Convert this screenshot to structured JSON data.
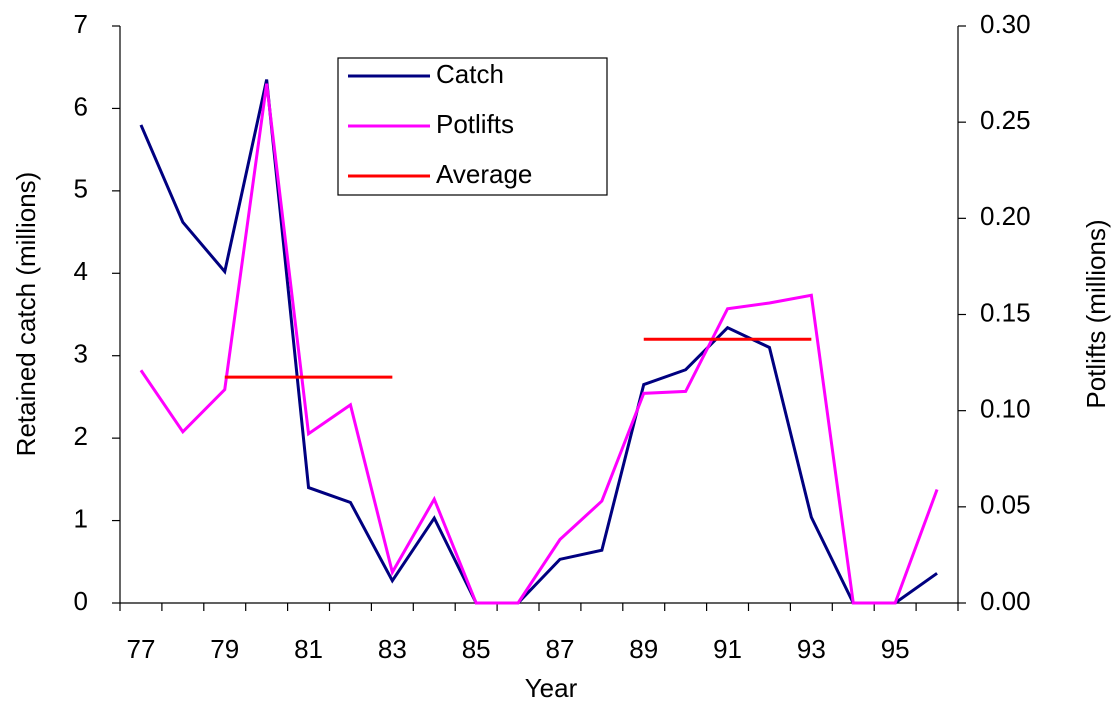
{
  "chart_data": {
    "type": "line",
    "xlabel": "Year",
    "ylabel": "Retained catch (millions)",
    "y2label": "Potlifts (millions)",
    "categories": [
      "77",
      null,
      "79",
      null,
      "81",
      null,
      "83",
      null,
      "85",
      null,
      "87",
      null,
      "89",
      null,
      "91",
      null,
      "93",
      null,
      "95",
      null
    ],
    "series": [
      {
        "name": "Catch",
        "color": "#000080",
        "values": [
          5.8,
          4.62,
          4.02,
          6.35,
          1.4,
          1.22,
          0.27,
          1.03,
          0,
          0,
          0.53,
          0.64,
          2.65,
          2.83,
          3.34,
          3.1,
          1.04,
          0,
          0,
          0.36
        ]
      },
      {
        "name": "Potlifts",
        "color": "#ff00ff",
        "axis": "y2",
        "values": [
          0.121,
          0.089,
          0.111,
          0.27,
          0.088,
          0.103,
          0.016,
          0.054,
          0,
          0,
          0.033,
          0.053,
          0.109,
          0.11,
          0.153,
          0.156,
          0.16,
          0,
          0,
          0.059
        ]
      },
      {
        "name": "Average",
        "color": "#ff0000",
        "values": [
          null,
          null,
          2.74,
          2.74,
          2.74,
          2.74,
          2.74,
          null,
          null,
          null,
          null,
          null,
          3.2,
          3.2,
          3.2,
          3.2,
          3.2,
          null,
          null,
          null
        ]
      }
    ],
    "ylim": [
      0,
      7
    ],
    "yticks": [
      0,
      1,
      2,
      3,
      4,
      5,
      6,
      7
    ],
    "y2lim": [
      0,
      0.3
    ],
    "y2ticks": [
      {
        "value": 0,
        "label": "0.00"
      },
      {
        "value": 0.05,
        "label": "0.05"
      },
      {
        "value": 0.1,
        "label": "0.10"
      },
      {
        "value": 0.15,
        "label": "0.15"
      },
      {
        "value": 0.2,
        "label": "0.20"
      },
      {
        "value": 0.25,
        "label": "0.25"
      },
      {
        "value": 0.3,
        "label": "0.30"
      }
    ],
    "legend": "top-center"
  }
}
